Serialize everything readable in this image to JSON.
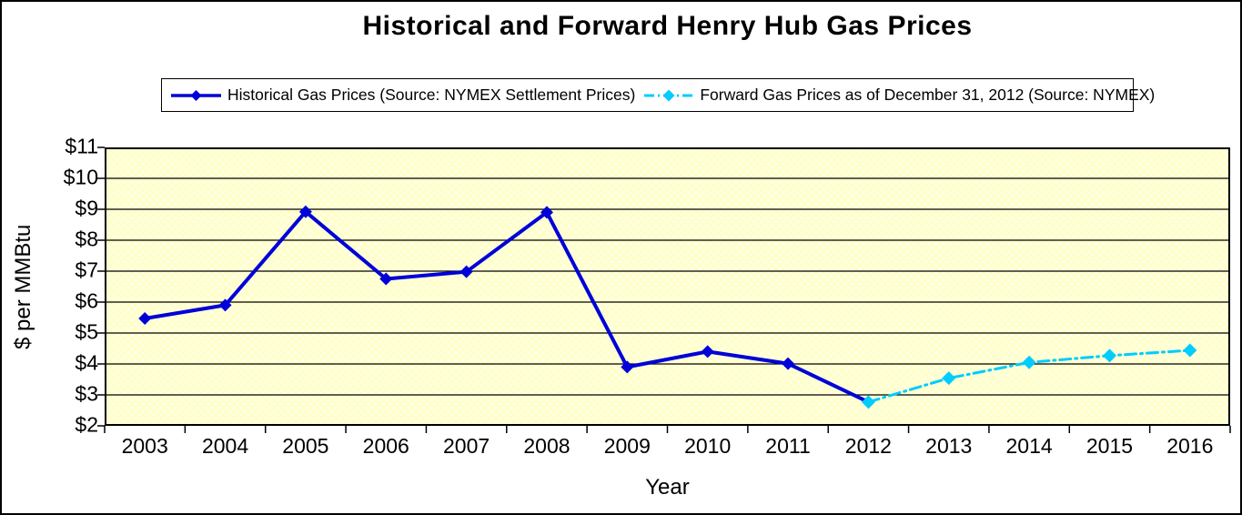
{
  "chart_data": {
    "type": "line",
    "title": "Historical and Forward Henry Hub Gas Prices",
    "xlabel": "Year",
    "ylabel": "$ per MMBtu",
    "categories": [
      "2003",
      "2004",
      "2005",
      "2006",
      "2007",
      "2008",
      "2009",
      "2010",
      "2011",
      "2012",
      "2013",
      "2014",
      "2015",
      "2016"
    ],
    "ylim": [
      2,
      11
    ],
    "y_ticks": [
      {
        "value": 2,
        "label": "$2"
      },
      {
        "value": 3,
        "label": "$3"
      },
      {
        "value": 4,
        "label": "$4"
      },
      {
        "value": 5,
        "label": "$5"
      },
      {
        "value": 6,
        "label": "$6"
      },
      {
        "value": 7,
        "label": "$7"
      },
      {
        "value": 8,
        "label": "$8"
      },
      {
        "value": 9,
        "label": "$9"
      },
      {
        "value": 10,
        "label": "$10"
      },
      {
        "value": 11,
        "label": "$11"
      }
    ],
    "grid": "horizontal",
    "legend_position": "top",
    "plot_background_color": "#FFFFCC",
    "grid_color": "#000000",
    "series": [
      {
        "name": "Historical Gas Prices (Source: NYMEX Settlement Prices)",
        "color": "#0000D8",
        "line_style": "solid",
        "marker": "diamond",
        "x": [
          2003,
          2004,
          2005,
          2006,
          2007,
          2008,
          2009,
          2010,
          2011,
          2012
        ],
        "values": [
          5.47,
          5.9,
          8.92,
          6.75,
          6.98,
          8.9,
          3.9,
          4.4,
          4.01,
          2.77
        ]
      },
      {
        "name": "Forward Gas Prices as of December 31, 2012 (Source: NYMEX)",
        "color": "#00CCFF",
        "line_style": "dash-dot",
        "marker": "diamond",
        "x": [
          2012,
          2013,
          2014,
          2015,
          2016
        ],
        "values": [
          2.77,
          3.54,
          4.05,
          4.27,
          4.44
        ]
      }
    ]
  }
}
